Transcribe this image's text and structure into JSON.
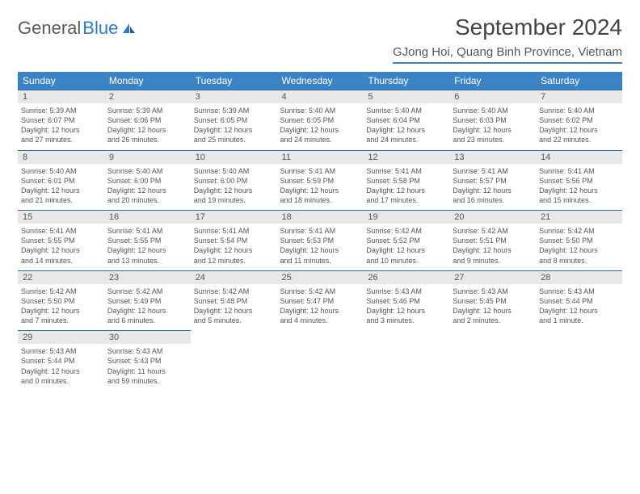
{
  "brand": {
    "part1": "General",
    "part2": "Blue"
  },
  "title": "September 2024",
  "location": "GJong Hoi, Quang Binh Province, Vietnam",
  "header_color": "#3a84c6",
  "daynum_bg": "#e8e8e8",
  "daynum_border": "#2a6aa0",
  "text_color": "#555555",
  "font_size_cell": 9,
  "day_labels": [
    "Sunday",
    "Monday",
    "Tuesday",
    "Wednesday",
    "Thursday",
    "Friday",
    "Saturday"
  ],
  "weeks": [
    [
      {
        "n": "1",
        "sr": "5:39 AM",
        "ss": "6:07 PM",
        "dl": "12 hours and 27 minutes."
      },
      {
        "n": "2",
        "sr": "5:39 AM",
        "ss": "6:06 PM",
        "dl": "12 hours and 26 minutes."
      },
      {
        "n": "3",
        "sr": "5:39 AM",
        "ss": "6:05 PM",
        "dl": "12 hours and 25 minutes."
      },
      {
        "n": "4",
        "sr": "5:40 AM",
        "ss": "6:05 PM",
        "dl": "12 hours and 24 minutes."
      },
      {
        "n": "5",
        "sr": "5:40 AM",
        "ss": "6:04 PM",
        "dl": "12 hours and 24 minutes."
      },
      {
        "n": "6",
        "sr": "5:40 AM",
        "ss": "6:03 PM",
        "dl": "12 hours and 23 minutes."
      },
      {
        "n": "7",
        "sr": "5:40 AM",
        "ss": "6:02 PM",
        "dl": "12 hours and 22 minutes."
      }
    ],
    [
      {
        "n": "8",
        "sr": "5:40 AM",
        "ss": "6:01 PM",
        "dl": "12 hours and 21 minutes."
      },
      {
        "n": "9",
        "sr": "5:40 AM",
        "ss": "6:00 PM",
        "dl": "12 hours and 20 minutes."
      },
      {
        "n": "10",
        "sr": "5:40 AM",
        "ss": "6:00 PM",
        "dl": "12 hours and 19 minutes."
      },
      {
        "n": "11",
        "sr": "5:41 AM",
        "ss": "5:59 PM",
        "dl": "12 hours and 18 minutes."
      },
      {
        "n": "12",
        "sr": "5:41 AM",
        "ss": "5:58 PM",
        "dl": "12 hours and 17 minutes."
      },
      {
        "n": "13",
        "sr": "5:41 AM",
        "ss": "5:57 PM",
        "dl": "12 hours and 16 minutes."
      },
      {
        "n": "14",
        "sr": "5:41 AM",
        "ss": "5:56 PM",
        "dl": "12 hours and 15 minutes."
      }
    ],
    [
      {
        "n": "15",
        "sr": "5:41 AM",
        "ss": "5:55 PM",
        "dl": "12 hours and 14 minutes."
      },
      {
        "n": "16",
        "sr": "5:41 AM",
        "ss": "5:55 PM",
        "dl": "12 hours and 13 minutes."
      },
      {
        "n": "17",
        "sr": "5:41 AM",
        "ss": "5:54 PM",
        "dl": "12 hours and 12 minutes."
      },
      {
        "n": "18",
        "sr": "5:41 AM",
        "ss": "5:53 PM",
        "dl": "12 hours and 11 minutes."
      },
      {
        "n": "19",
        "sr": "5:42 AM",
        "ss": "5:52 PM",
        "dl": "12 hours and 10 minutes."
      },
      {
        "n": "20",
        "sr": "5:42 AM",
        "ss": "5:51 PM",
        "dl": "12 hours and 9 minutes."
      },
      {
        "n": "21",
        "sr": "5:42 AM",
        "ss": "5:50 PM",
        "dl": "12 hours and 8 minutes."
      }
    ],
    [
      {
        "n": "22",
        "sr": "5:42 AM",
        "ss": "5:50 PM",
        "dl": "12 hours and 7 minutes."
      },
      {
        "n": "23",
        "sr": "5:42 AM",
        "ss": "5:49 PM",
        "dl": "12 hours and 6 minutes."
      },
      {
        "n": "24",
        "sr": "5:42 AM",
        "ss": "5:48 PM",
        "dl": "12 hours and 5 minutes."
      },
      {
        "n": "25",
        "sr": "5:42 AM",
        "ss": "5:47 PM",
        "dl": "12 hours and 4 minutes."
      },
      {
        "n": "26",
        "sr": "5:43 AM",
        "ss": "5:46 PM",
        "dl": "12 hours and 3 minutes."
      },
      {
        "n": "27",
        "sr": "5:43 AM",
        "ss": "5:45 PM",
        "dl": "12 hours and 2 minutes."
      },
      {
        "n": "28",
        "sr": "5:43 AM",
        "ss": "5:44 PM",
        "dl": "12 hours and 1 minute."
      }
    ],
    [
      {
        "n": "29",
        "sr": "5:43 AM",
        "ss": "5:44 PM",
        "dl": "12 hours and 0 minutes."
      },
      {
        "n": "30",
        "sr": "5:43 AM",
        "ss": "5:43 PM",
        "dl": "11 hours and 59 minutes."
      },
      null,
      null,
      null,
      null,
      null
    ]
  ],
  "labels": {
    "sunrise": "Sunrise:",
    "sunset": "Sunset:",
    "daylight": "Daylight:"
  }
}
